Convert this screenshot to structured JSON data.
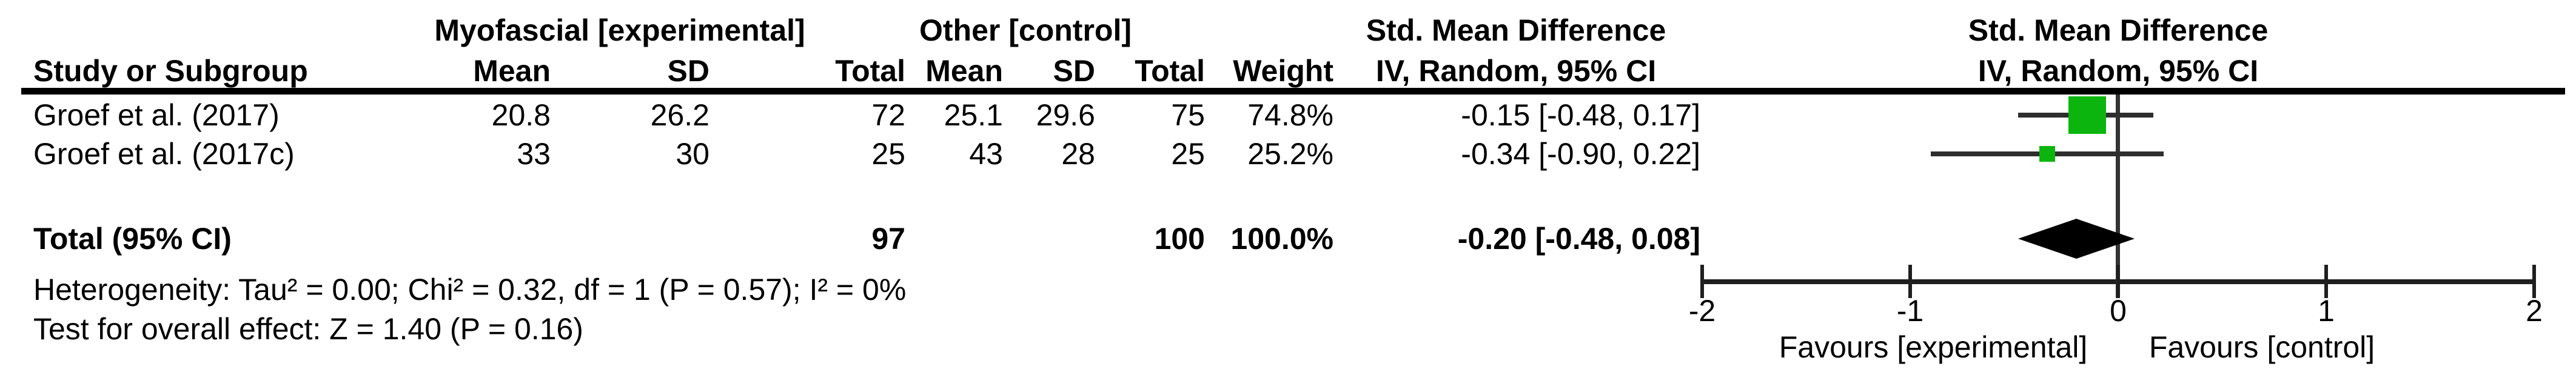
{
  "table": {
    "group_headers": {
      "experimental": "Myofascial [experimental]",
      "control": "Other [control]",
      "smd_text_col": "Std. Mean Difference",
      "smd_plot_col": "Std. Mean Difference"
    },
    "col_headers": {
      "study": "Study or Subgroup",
      "mean_exp": "Mean",
      "sd_exp": "SD",
      "total_exp": "Total",
      "mean_ctrl": "Mean",
      "sd_ctrl": "SD",
      "total_ctrl": "Total",
      "weight": "Weight",
      "ivci_text_col": "IV, Random, 95% CI",
      "ivci_plot_col": "IV, Random, 95% CI"
    },
    "rows": [
      {
        "study": "Groef et al. (2017)",
        "mean_e": "20.8",
        "sd_e": "26.2",
        "total_e": "72",
        "mean_c": "25.1",
        "sd_c": "29.6",
        "total_c": "75",
        "weight": "74.8%",
        "smd_ci": "-0.15 [-0.48, 0.17]"
      },
      {
        "study": "Groef et al. (2017c)",
        "mean_e": "33",
        "sd_e": "30",
        "total_e": "25",
        "mean_c": "43",
        "sd_c": "28",
        "total_c": "25",
        "weight": "25.2%",
        "smd_ci": "-0.34 [-0.90, 0.22]"
      }
    ],
    "total_row": {
      "label": "Total (95% CI)",
      "total_e": "97",
      "total_c": "100",
      "weight": "100.0%",
      "smd_ci": "-0.20 [-0.48, 0.08]"
    },
    "footnotes": {
      "heterogeneity": "Heterogeneity: Tau² = 0.00; Chi² = 0.32, df = 1 (P = 0.57); I² = 0%",
      "overall_effect": "Test for overall effect: Z = 1.40 (P = 0.16)"
    }
  },
  "chart_data": {
    "type": "forest",
    "effect_measure": "Std. Mean Difference",
    "method": "IV, Random, 95% CI",
    "x_axis": {
      "min": -2,
      "max": 2,
      "ticks": [
        -2,
        -1,
        0,
        1,
        2
      ]
    },
    "studies": [
      {
        "name": "Groef et al. (2017)",
        "mean_e": 20.8,
        "sd_e": 26.2,
        "total_e": 72,
        "mean_c": 25.1,
        "sd_c": 29.6,
        "total_c": 75,
        "weight_pct": 74.8,
        "smd": -0.15,
        "ci_low": -0.48,
        "ci_high": 0.17
      },
      {
        "name": "Groef et al. (2017c)",
        "mean_e": 33,
        "sd_e": 30,
        "total_e": 25,
        "mean_c": 43,
        "sd_c": 28,
        "total_c": 25,
        "weight_pct": 25.2,
        "smd": -0.34,
        "ci_low": -0.9,
        "ci_high": 0.22
      }
    ],
    "total": {
      "total_e": 97,
      "total_c": 100,
      "weight_pct": 100.0,
      "smd": -0.2,
      "ci_low": -0.48,
      "ci_high": 0.08
    },
    "favours_left": "Favours [experimental]",
    "favours_right": "Favours [control]",
    "marker_color": "#0bb50e",
    "line_color": "#1f1f1f"
  }
}
